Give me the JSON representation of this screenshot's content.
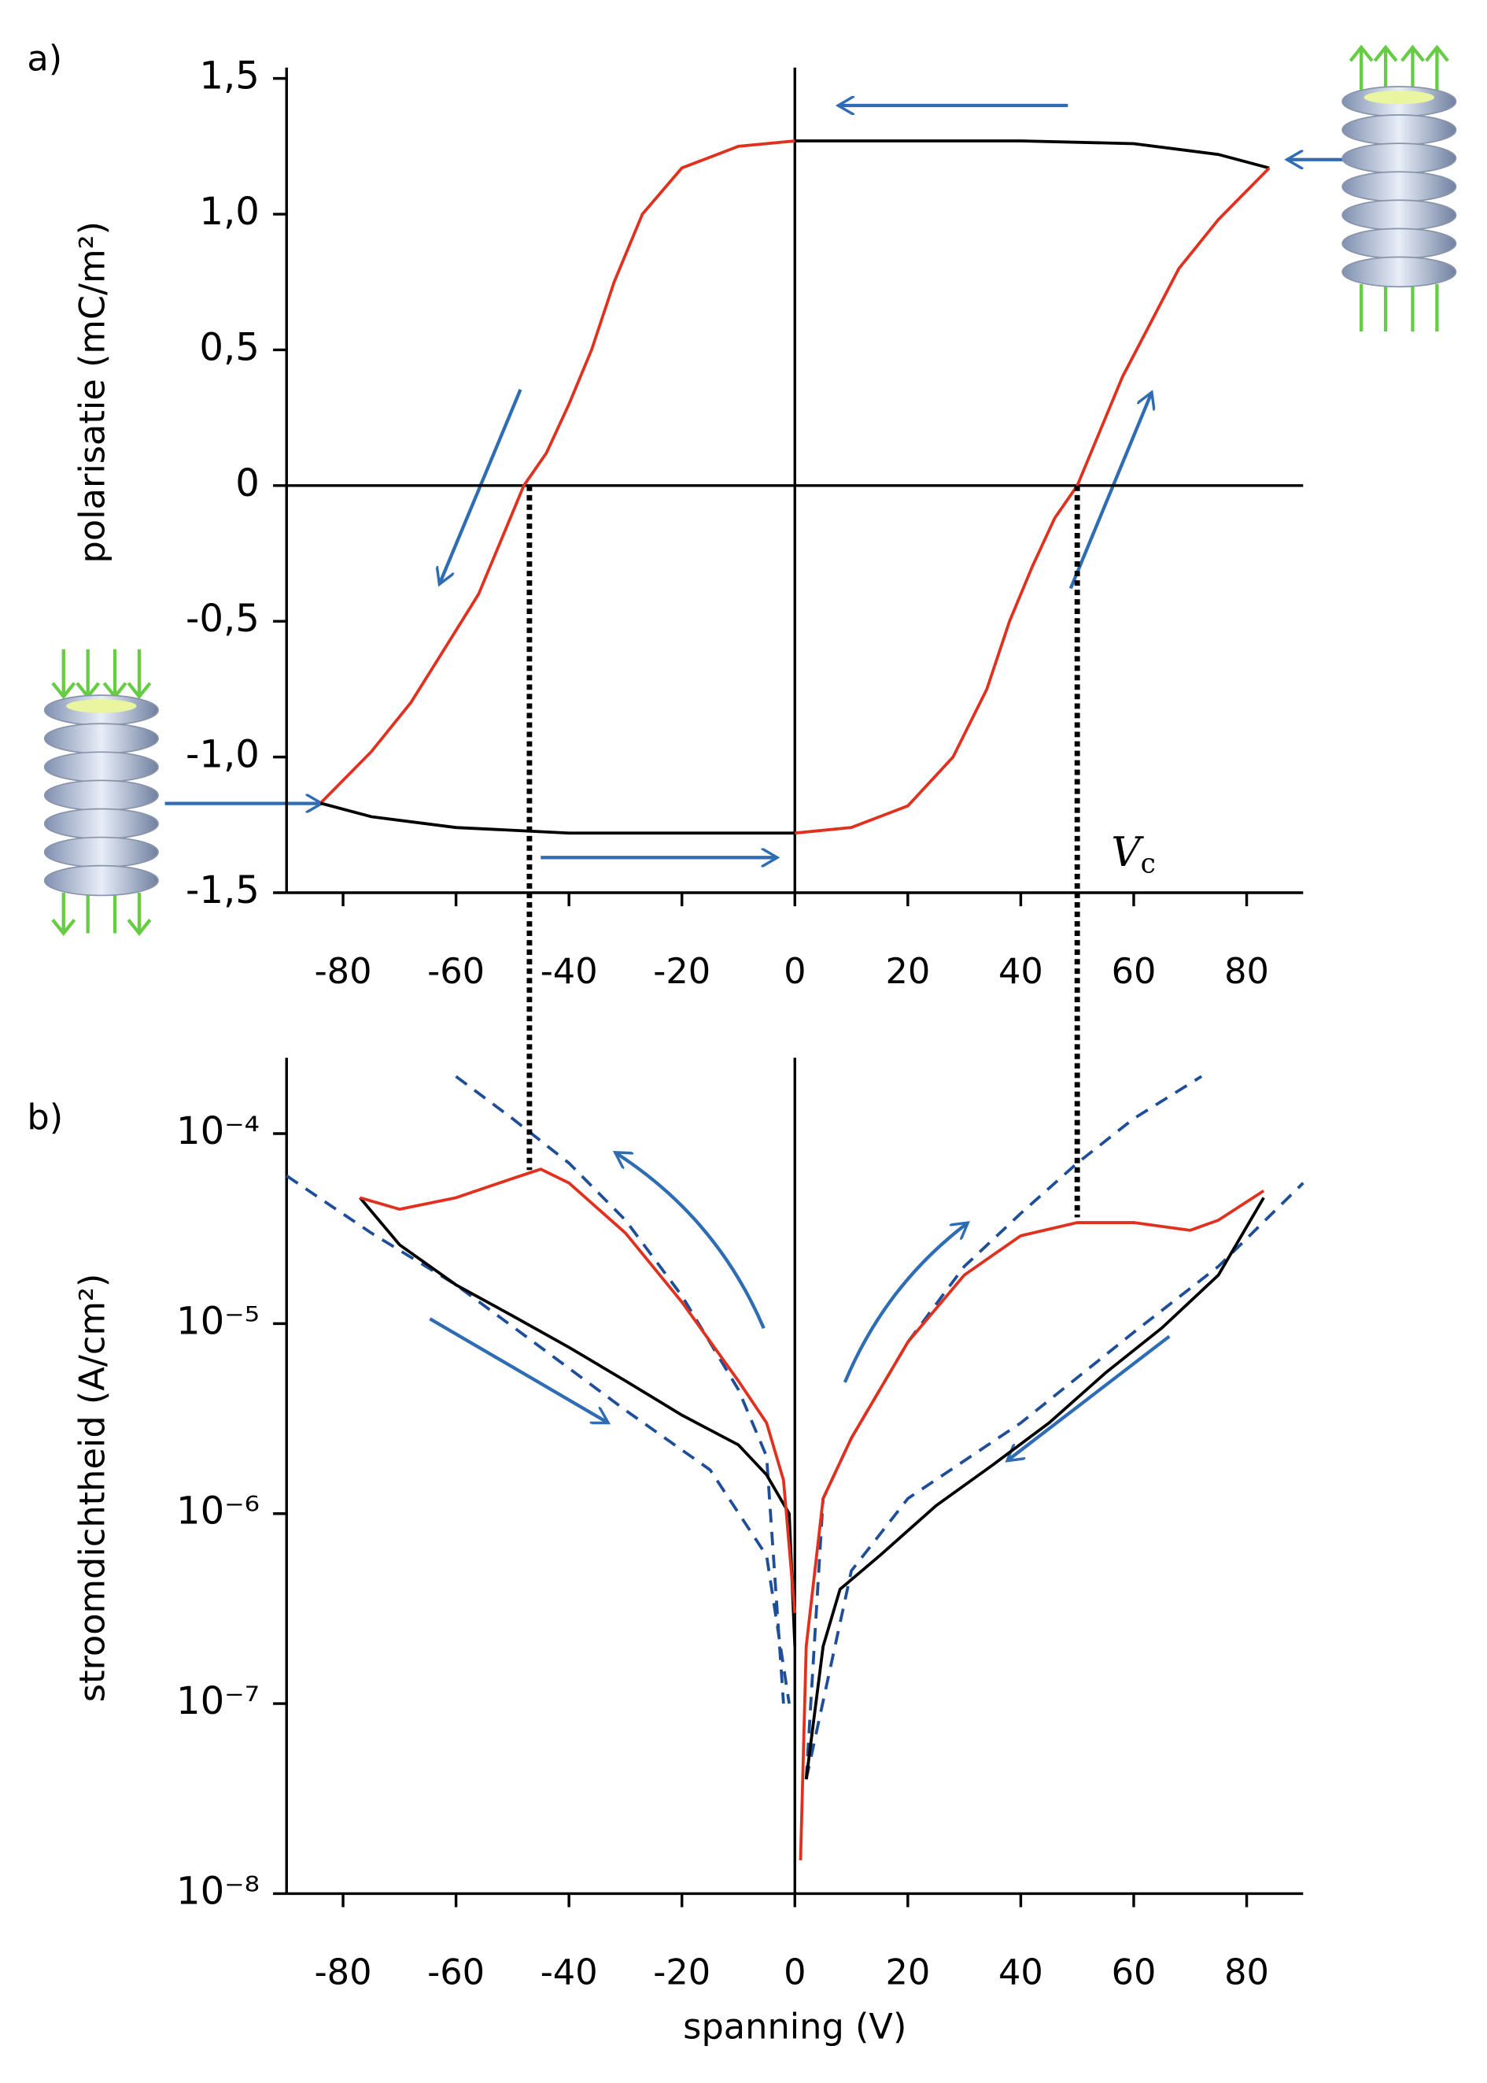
{
  "chart_data": [
    {
      "type": "line",
      "title": "a)",
      "y_label": "polarisatie (mC/m²)",
      "xlim": [
        -90,
        90
      ],
      "xticks": [
        -80,
        -60,
        -40,
        -20,
        0,
        20,
        40,
        60,
        80
      ],
      "ylim": [
        -1.5,
        1.5
      ],
      "yticks": [
        {
          "value": -1.5,
          "label": "-1,5"
        },
        {
          "value": -1.0,
          "label": "-1,0"
        },
        {
          "value": -0.5,
          "label": "-0,5"
        },
        0,
        {
          "value": 0.5,
          "label": "0,5"
        },
        {
          "value": 1.0,
          "label": "1,0"
        },
        {
          "value": 1.5,
          "label": "1,5"
        }
      ],
      "coercive_x": [
        -47,
        50
      ],
      "annotation": {
        "text": "V",
        "subscript": "c"
      },
      "series": [
        {
          "color": "#000000",
          "x": [
            84,
            75,
            60,
            40,
            20,
            0
          ],
          "values": [
            1.17,
            1.22,
            1.26,
            1.27,
            1.27,
            1.27
          ]
        },
        {
          "color": "#e0301e",
          "x": [
            0,
            -10,
            -20,
            -27,
            -32,
            -36,
            -40,
            -44,
            -48,
            -52,
            -56,
            -62,
            -68,
            -75,
            -84
          ],
          "values": [
            1.27,
            1.25,
            1.17,
            1.0,
            0.75,
            0.5,
            0.3,
            0.12,
            0,
            -0.2,
            -0.4,
            -0.6,
            -0.8,
            -0.98,
            -1.17
          ]
        },
        {
          "color": "#000000",
          "x": [
            -84,
            -75,
            -60,
            -40,
            -20,
            0
          ],
          "values": [
            -1.17,
            -1.22,
            -1.26,
            -1.28,
            -1.28,
            -1.28
          ]
        },
        {
          "color": "#e0301e",
          "x": [
            0,
            10,
            20,
            28,
            34,
            38,
            42,
            46,
            50,
            54,
            58,
            63,
            68,
            75,
            84
          ],
          "values": [
            -1.28,
            -1.26,
            -1.18,
            -1.0,
            -0.75,
            -0.5,
            -0.3,
            -0.12,
            0,
            0.2,
            0.4,
            0.6,
            0.8,
            0.98,
            1.17
          ]
        }
      ]
    },
    {
      "type": "line",
      "title": "b)",
      "y_label": "stroomdichtheid (A/cm²)",
      "x_label": "spanning (V)",
      "log_y": true,
      "xlim": [
        -90,
        90
      ],
      "xticks": [
        -80,
        -60,
        -40,
        -20,
        0,
        20,
        40,
        60,
        80
      ],
      "ylim": [
        1e-08,
        0.00022
      ],
      "yticks": [
        {
          "value": 1e-08,
          "label": "10⁻⁸"
        },
        {
          "value": 1e-07,
          "label": "10⁻⁷"
        },
        {
          "value": 1e-06,
          "label": "10⁻⁶"
        },
        {
          "value": 1e-05,
          "label": "10⁻⁵"
        },
        {
          "value": 0.0001,
          "label": "10⁻⁴"
        }
      ],
      "series": [
        {
          "color": "#1f4e99",
          "dashed": true,
          "x": [
            -60,
            -50,
            -40,
            -30,
            -20,
            -10,
            -5,
            -2
          ],
          "values": [
            0.0002,
            0.00012,
            7e-05,
            3.5e-05,
            1.4e-05,
            4.5e-06,
            2e-06,
            1e-07
          ]
        },
        {
          "color": "#1f4e99",
          "dashed": true,
          "x": [
            -90,
            -75,
            -60,
            -45,
            -30,
            -15,
            -5,
            -1
          ],
          "values": [
            6e-05,
            3e-05,
            1.6e-05,
            7.5e-06,
            3.5e-06,
            1.7e-06,
            6e-07,
            1e-07
          ]
        },
        {
          "color": "#1f4e99",
          "dashed": true,
          "x": [
            2,
            5,
            10,
            20,
            30,
            40,
            50,
            60,
            72
          ],
          "values": [
            4e-08,
            1.2e-06,
            2.5e-06,
            8e-06,
            2e-05,
            3.8e-05,
            7e-05,
            0.00012,
            0.0002
          ]
        },
        {
          "color": "#1f4e99",
          "dashed": true,
          "x": [
            2,
            10,
            20,
            40,
            60,
            75,
            90
          ],
          "values": [
            4e-08,
            5e-07,
            1.2e-06,
            3e-06,
            9e-06,
            2e-05,
            5.5e-05
          ]
        },
        {
          "color": "#000000",
          "x": [
            -77,
            -70,
            -60,
            -50,
            -40,
            -30,
            -20,
            -10,
            -5,
            -1,
            0
          ],
          "values": [
            4.6e-05,
            2.6e-05,
            1.6e-05,
            1.1e-05,
            7.5e-06,
            5e-06,
            3.3e-06,
            2.3e-06,
            1.6e-06,
            1e-06,
            2e-07
          ]
        },
        {
          "color": "#e0301e",
          "x": [
            -77,
            -70,
            -60,
            -50,
            -45,
            -40,
            -30,
            -20,
            -10,
            -5,
            -2,
            0
          ],
          "values": [
            4.6e-05,
            4e-05,
            4.6e-05,
            5.8e-05,
            6.5e-05,
            5.5e-05,
            3e-05,
            1.3e-05,
            5e-06,
            3e-06,
            1.5e-06,
            3e-07
          ]
        },
        {
          "color": "#000000",
          "x": [
            2,
            5,
            8,
            15,
            25,
            35,
            45,
            55,
            65,
            75,
            83
          ],
          "values": [
            4e-08,
            2e-07,
            4e-07,
            6e-07,
            1.1e-06,
            1.8e-06,
            3e-06,
            5.5e-06,
            9.5e-06,
            1.8e-05,
            4.6e-05
          ]
        },
        {
          "color": "#e0301e",
          "x": [
            1,
            2,
            5,
            10,
            20,
            30,
            40,
            50,
            60,
            70,
            75,
            83
          ],
          "values": [
            1.5e-08,
            2e-07,
            1.2e-06,
            2.5e-06,
            8e-06,
            1.8e-05,
            2.9e-05,
            3.4e-05,
            3.4e-05,
            3.1e-05,
            3.5e-05,
            5e-05
          ]
        }
      ]
    }
  ]
}
